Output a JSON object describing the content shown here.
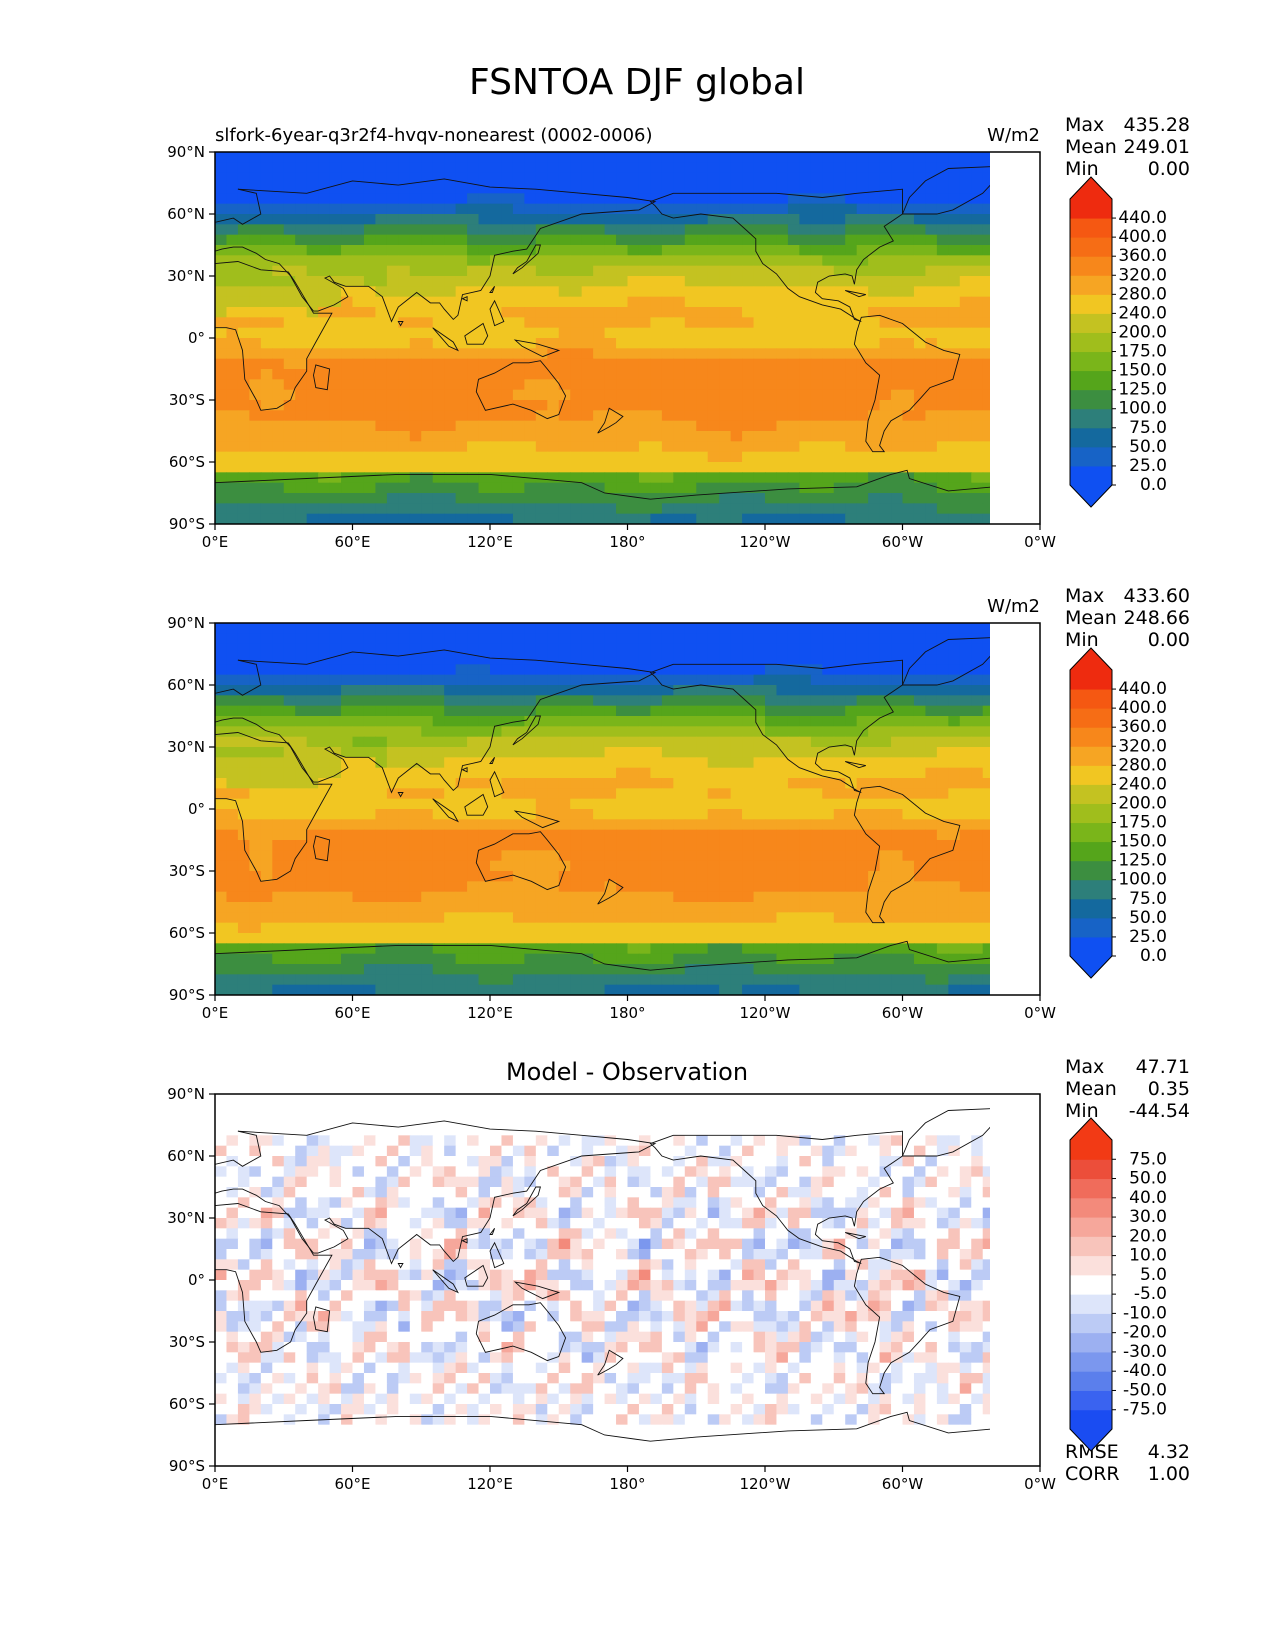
{
  "figure_title": "FSNTOA DJF global",
  "chart_data": [
    {
      "type": "heatmap",
      "title": "slfork-6year-q3r2f4-hvqv-nonearest (0002-0006)",
      "units": "W/m2",
      "field": "test",
      "xticks": [
        "0°E",
        "60°E",
        "120°E",
        "180°",
        "120°W",
        "60°W",
        "0°W"
      ],
      "yticks": [
        "90°N",
        "60°N",
        "30°N",
        "0°",
        "30°S",
        "60°S",
        "90°S"
      ],
      "xlim": [
        0,
        360
      ],
      "ylim": [
        -90,
        90
      ],
      "stats": [
        {
          "label": "Max",
          "value": "435.28"
        },
        {
          "label": "Mean",
          "value": "249.01"
        },
        {
          "label": "Min",
          "value": "0.00"
        }
      ],
      "colorbar": {
        "levels": [
          "0.0",
          "25.0",
          "50.0",
          "75.0",
          "100.0",
          "125.0",
          "150.0",
          "175.0",
          "200.0",
          "240.0",
          "280.0",
          "320.0",
          "360.0",
          "400.0",
          "440.0"
        ],
        "colors": [
          "#0f50f2",
          "#1763c6",
          "#14699e",
          "#2d7f7a",
          "#3c8e40",
          "#55a51b",
          "#7ab51a",
          "#a0be1c",
          "#c4c221",
          "#f1c622",
          "#f6a523",
          "#f7871b",
          "#f66d15",
          "#f55812",
          "#ee2b0f"
        ]
      }
    },
    {
      "type": "heatmap",
      "title": "",
      "units": "W/m2",
      "field": "reference",
      "xticks": [
        "0°E",
        "60°E",
        "120°E",
        "180°",
        "120°W",
        "60°W",
        "0°W"
      ],
      "yticks": [
        "90°N",
        "60°N",
        "30°N",
        "0°",
        "30°S",
        "60°S",
        "90°S"
      ],
      "xlim": [
        0,
        360
      ],
      "ylim": [
        -90,
        90
      ],
      "stats": [
        {
          "label": "Max",
          "value": "433.60"
        },
        {
          "label": "Mean",
          "value": "248.66"
        },
        {
          "label": "Min",
          "value": "0.00"
        }
      ],
      "colorbar": {
        "levels": [
          "0.0",
          "25.0",
          "50.0",
          "75.0",
          "100.0",
          "125.0",
          "150.0",
          "175.0",
          "200.0",
          "240.0",
          "280.0",
          "320.0",
          "360.0",
          "400.0",
          "440.0"
        ],
        "colors": [
          "#0f50f2",
          "#1763c6",
          "#14699e",
          "#2d7f7a",
          "#3c8e40",
          "#55a51b",
          "#7ab51a",
          "#a0be1c",
          "#c4c221",
          "#f1c622",
          "#f6a523",
          "#f7871b",
          "#f66d15",
          "#f55812",
          "#ee2b0f"
        ]
      }
    },
    {
      "type": "heatmap",
      "title": "Model - Observation",
      "units": "",
      "field": "difference",
      "xticks": [
        "0°E",
        "60°E",
        "120°E",
        "180°",
        "120°W",
        "60°W",
        "0°W"
      ],
      "yticks": [
        "90°N",
        "60°N",
        "30°N",
        "0°",
        "30°S",
        "60°S",
        "90°S"
      ],
      "xlim": [
        0,
        360
      ],
      "ylim": [
        -90,
        90
      ],
      "stats": [
        {
          "label": "Max",
          "value": "47.71"
        },
        {
          "label": "Mean",
          "value": "0.35"
        },
        {
          "label": "Min",
          "value": "-44.54"
        }
      ],
      "extra_stats": [
        {
          "label": "RMSE",
          "value": "4.32"
        },
        {
          "label": "CORR",
          "value": "1.00"
        }
      ],
      "colorbar": {
        "levels": [
          "-75.0",
          "-50.0",
          "-40.0",
          "-30.0",
          "-20.0",
          "-10.0",
          "-5.0",
          "5.0",
          "10.0",
          "20.0",
          "30.0",
          "40.0",
          "50.0",
          "75.0"
        ],
        "colors": [
          "#1a4cf2",
          "#3a63f0",
          "#5b7fec",
          "#7b97ee",
          "#9cb0f1",
          "#bccbf5",
          "#dde5fa",
          "#ffffff",
          "#fbe0dc",
          "#f8c4bb",
          "#f6a79b",
          "#f38a7b",
          "#f06c5b",
          "#ec4e3a",
          "#f23a15"
        ]
      }
    }
  ]
}
